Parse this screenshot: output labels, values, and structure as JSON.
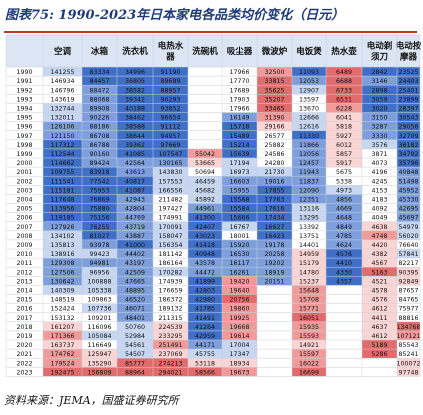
{
  "title": "图表75:  1990-2023年日本家电各品类均价变化（日元）",
  "source": "资料来源：JEMA，国盛证券研究所",
  "colors": {
    "header_bg": "#dbe5f3",
    "grid": "#c9d0dc",
    "text": "#111111",
    "blue_strong": "#3f6fc6",
    "blue_mid": "#7e9fdb",
    "blue_light": "#c7d6f1",
    "red_strong": "#e26b6b",
    "red_mid": "#f19a9a",
    "red_light": "#fbd4d4",
    "title_rule": "#c0392b"
  },
  "chart_data": {
    "type": "table",
    "columns": [
      "",
      "空调",
      "冰箱",
      "洗衣机",
      "电热水器",
      "洗碗机",
      "吸尘器",
      "微波炉",
      "电饭煲",
      "热水壶",
      "电动剃须刀",
      "电动按摩器"
    ],
    "rows": [
      [
        "1990",
        "141255",
        "83334",
        "34996",
        "91190",
        "",
        "17966",
        "32500",
        "11093",
        "6489",
        "2842",
        "23525"
      ],
      [
        "1991",
        "146934",
        "84457",
        "36805",
        "89689",
        "",
        "17770",
        "33815",
        "12053",
        "6688",
        "3146",
        "24403"
      ],
      [
        "1992",
        "146796",
        "88472",
        "38582",
        "88957",
        "",
        "17689",
        "35625",
        "12907",
        "6733",
        "2898",
        "25401"
      ],
      [
        "1993",
        "143619",
        "88068",
        "39342",
        "90293",
        "",
        "17903",
        "35207",
        "13597",
        "6531",
        "3059",
        "23899"
      ],
      [
        "1994",
        "132744",
        "89908",
        "40188",
        "93852",
        "",
        "17966",
        "33465",
        "13670",
        "6228",
        "3020",
        "28397"
      ],
      [
        "1995",
        "132011",
        "90226",
        "38462",
        "96654",
        "",
        "16149",
        "31390",
        "12666",
        "6041",
        "3150",
        "30543"
      ],
      [
        "1996",
        "126106",
        "88186",
        "38588",
        "91112",
        "",
        "15718",
        "29166",
        "12616",
        "5818",
        "3287",
        "29056"
      ],
      [
        "1997",
        "121150",
        "86708",
        "38644",
        "94957",
        "",
        "15489",
        "26577",
        "11330",
        "5927",
        "3330",
        "32709"
      ],
      [
        "1998",
        "117312",
        "86788",
        "39362",
        "97669",
        "",
        "15214",
        "25882",
        "11866",
        "6012",
        "3576",
        "36182"
      ],
      [
        "1999",
        "112544",
        "90160",
        "41085",
        "107547",
        "55042",
        "15639",
        "24586",
        "12056",
        "5857",
        "3871",
        "34792"
      ],
      [
        "2000",
        "114662",
        "89424",
        "42564",
        "130165",
        "53665",
        "17194",
        "24280",
        "12457",
        "5917",
        "4073",
        "35796"
      ],
      [
        "2001",
        "109755",
        "83918",
        "43613",
        "143830",
        "50694",
        "16973",
        "21730",
        "11943",
        "5675",
        "4196",
        "40848"
      ],
      [
        "2002",
        "111541",
        "77542",
        "40817",
        "157553",
        "46459",
        "16603",
        "19016",
        "11837",
        "5338",
        "4245",
        "51498"
      ],
      [
        "2003",
        "115181",
        "75953",
        "41087",
        "166556",
        "45682",
        "15955",
        "17855",
        "12090",
        "4973",
        "4153",
        "45952"
      ],
      [
        "2004",
        "117648",
        "76869",
        "42943",
        "211482",
        "45892",
        "15568",
        "17763",
        "12351",
        "4856",
        "4183",
        "45330"
      ],
      [
        "2005",
        "113956",
        "75880",
        "42804",
        "197427",
        "44961",
        "15584",
        "17616",
        "13116",
        "4669",
        "4092",
        "42695"
      ],
      [
        "2006",
        "119185",
        "75156",
        "44769",
        "174991",
        "41300",
        "15666",
        "17434",
        "13295",
        "4648",
        "4049",
        "45697"
      ],
      [
        "2007",
        "127926",
        "76255",
        "43719",
        "170091",
        "42407",
        "16767",
        "16627",
        "13392",
        "4849",
        "4638",
        "54979"
      ],
      [
        "2008",
        "134102",
        "81027",
        "43887",
        "158047",
        "43023",
        "18001",
        "16423",
        "13751",
        "4785",
        "4748",
        "56020"
      ],
      [
        "2009",
        "135813",
        "93978",
        "41000",
        "156354",
        "41418",
        "15920",
        "19178",
        "14401",
        "4624",
        "4420",
        "76640"
      ],
      [
        "2010",
        "138916",
        "99423",
        "44402",
        "181142",
        "40948",
        "16530",
        "20258",
        "14959",
        "4576",
        "4382",
        "57841"
      ],
      [
        "2011",
        "129308",
        "94981",
        "43197",
        "186164",
        "43578",
        "16117",
        "19202",
        "15179",
        "4410",
        "4567",
        "82217"
      ],
      [
        "2012",
        "127506",
        "96956",
        "42509",
        "170282",
        "44472",
        "16261",
        "18919",
        "14780",
        "4330",
        "5163",
        "90395"
      ],
      [
        "2013",
        "130642",
        "100888",
        "47665",
        "174939",
        "41899",
        "19420",
        "20151",
        "15237",
        "4357",
        "4521",
        "92849"
      ],
      [
        "2014",
        "140309",
        "105338",
        "48895",
        "176659",
        "42803",
        "19640",
        "",
        "15648",
        "",
        "4578",
        "87657"
      ],
      [
        "2015",
        "148519",
        "109863",
        "46520",
        "186372",
        "42980",
        "20756",
        "",
        "15708",
        "",
        "4576",
        "84765"
      ],
      [
        "2016",
        "152424",
        "107736",
        "46071",
        "189132",
        "41785",
        "19860",
        "",
        "15771",
        "",
        "4612",
        "75977"
      ],
      [
        "2017",
        "153132",
        "109201",
        "48401",
        "211315",
        "41491",
        "19925",
        "",
        "16051",
        "",
        "4411",
        "88816"
      ],
      [
        "2018",
        "161207",
        "116096",
        "50760",
        "224539",
        "41264",
        "19668",
        "",
        "15935",
        "",
        "4637",
        "134768"
      ],
      [
        "2019",
        "171366",
        "105084",
        "52984",
        "233295",
        "42959",
        "19614",
        "",
        "15593",
        "",
        "4612",
        "107121"
      ],
      [
        "2020",
        "163737",
        "116649",
        "54561",
        "251491",
        "44171",
        "17004",
        "",
        "14921",
        "",
        "5189",
        "85543"
      ],
      [
        "2021",
        "174762",
        "125947",
        "54507",
        "237069",
        "45755",
        "17347",
        "",
        "15597",
        "",
        "5286",
        "85241"
      ],
      [
        "2022",
        "179524",
        "135290",
        "85777",
        "274213",
        "53118",
        "18934",
        "",
        "16022",
        "",
        "",
        "100072"
      ],
      [
        "2023",
        "192475",
        "156809",
        "88964",
        "294021",
        "58566",
        "19673",
        "",
        "16699",
        "",
        "",
        "97748"
      ]
    ]
  }
}
